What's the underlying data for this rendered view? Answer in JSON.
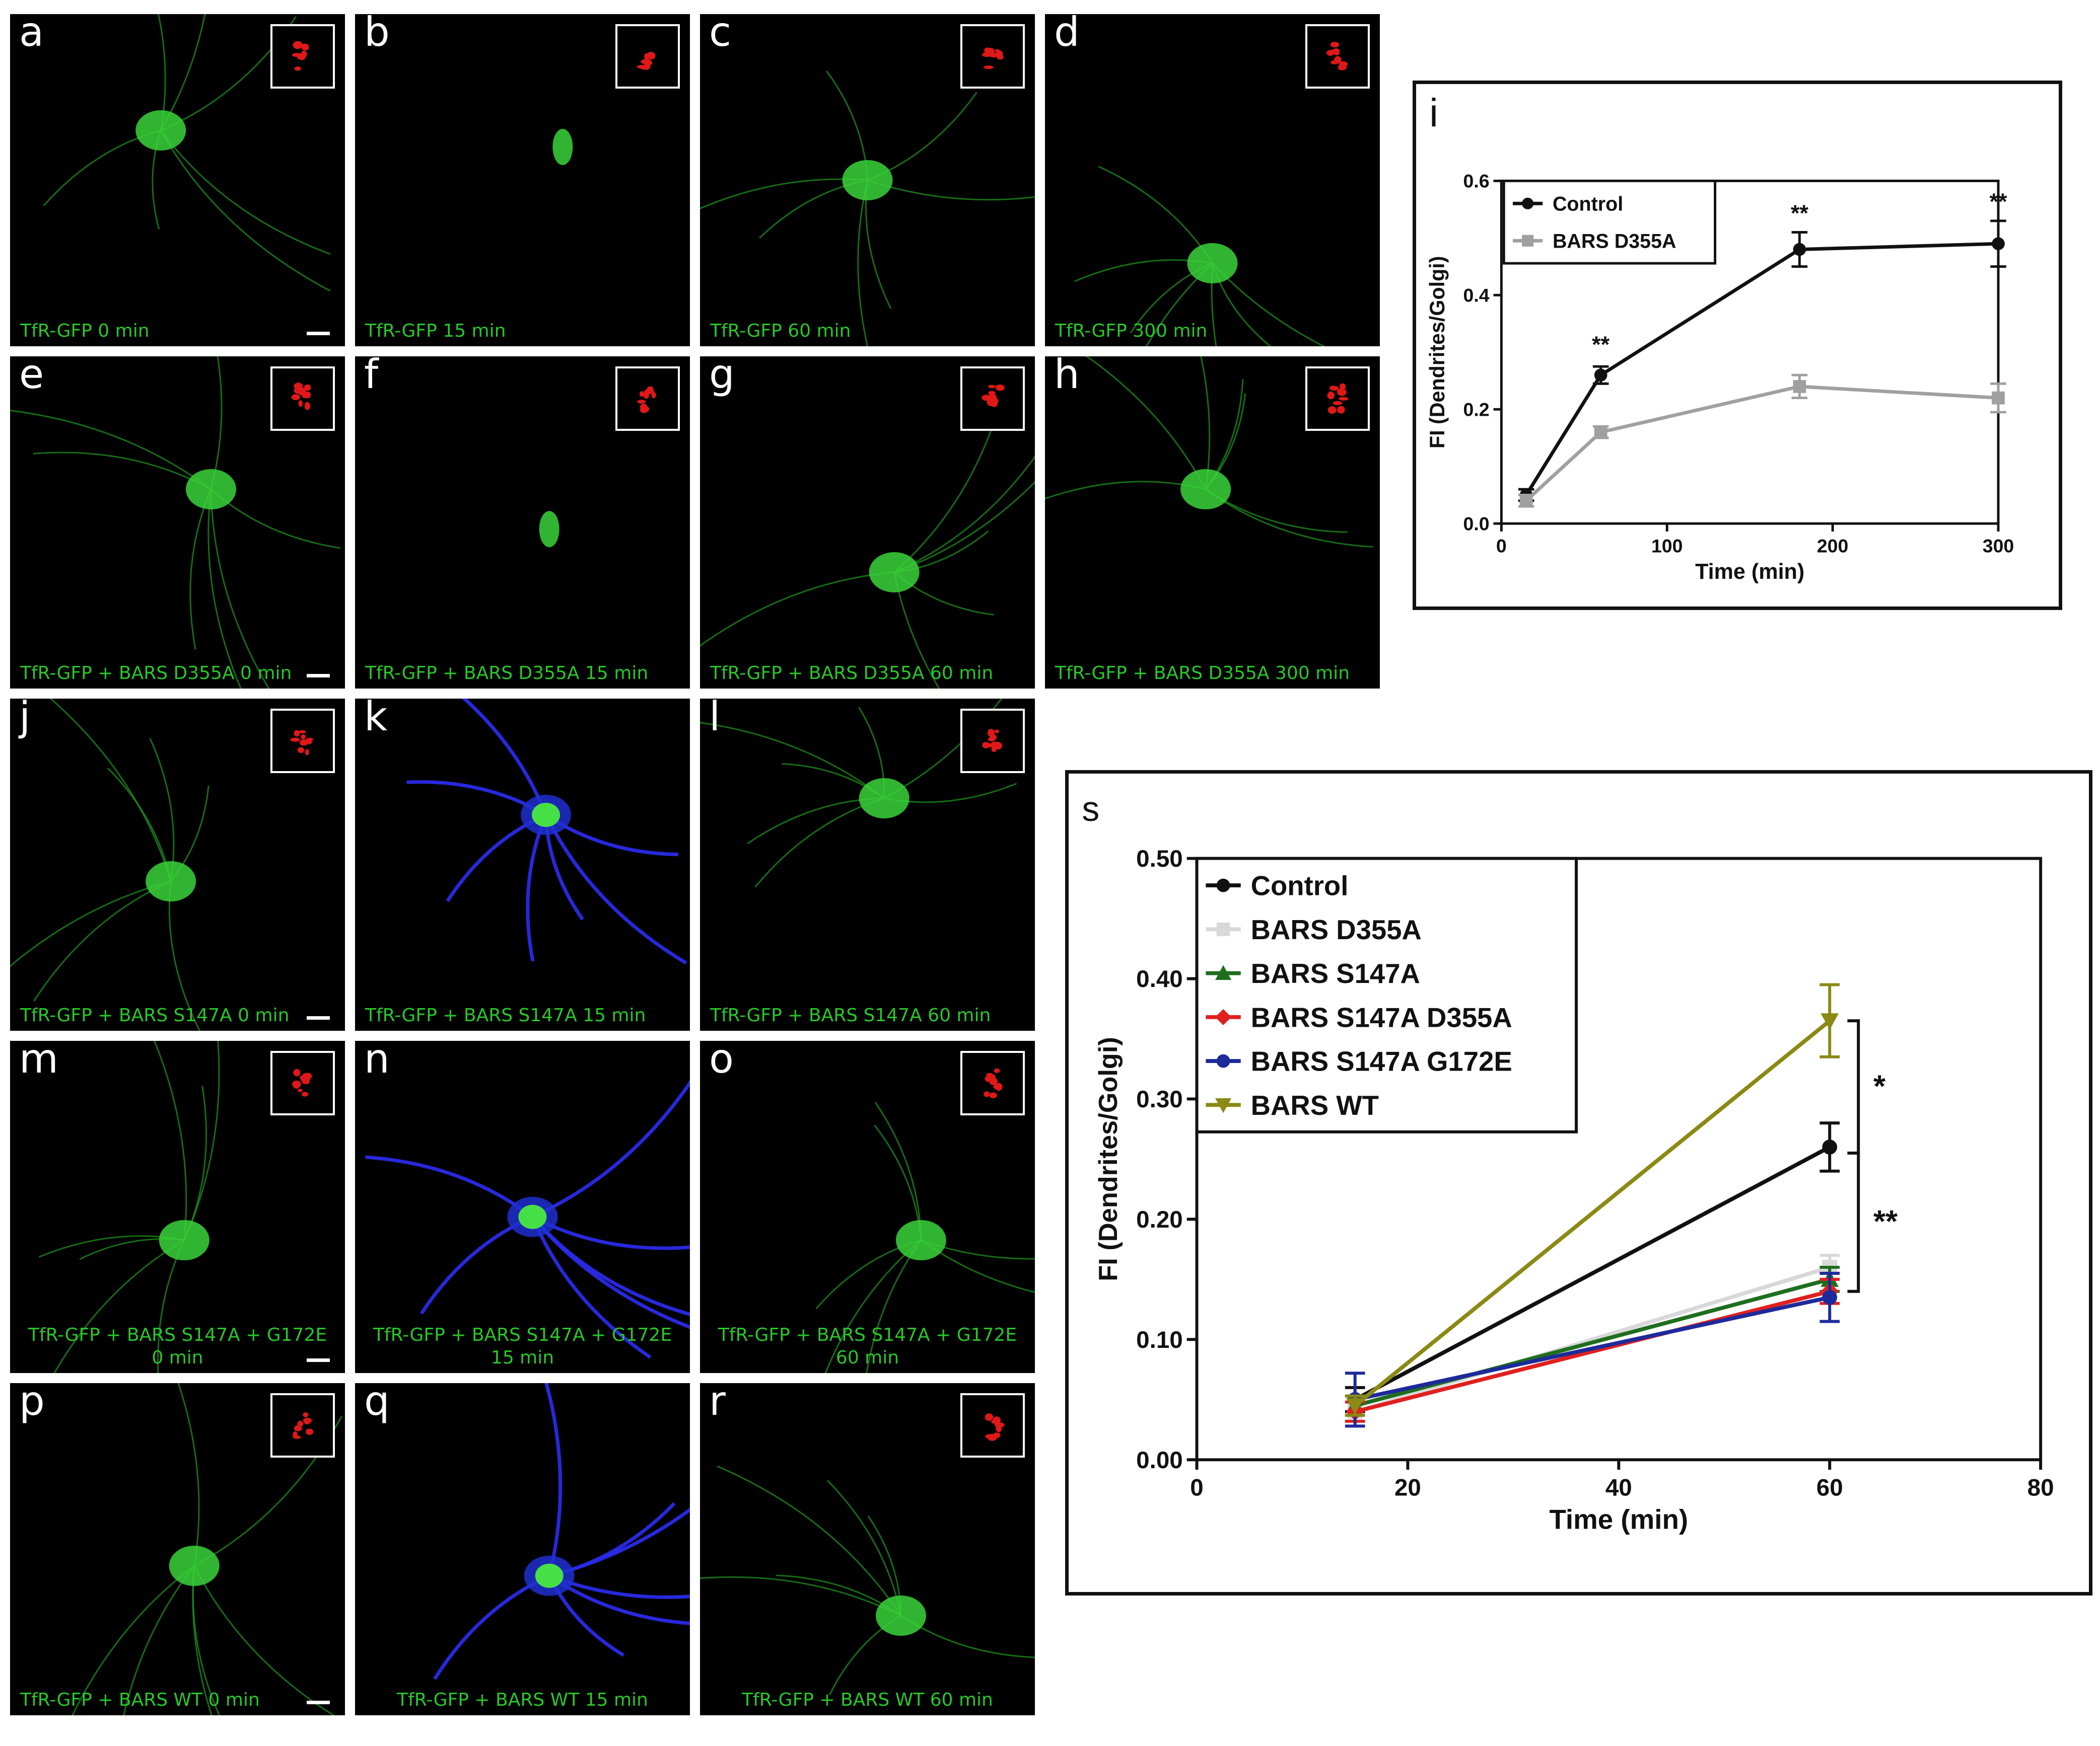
{
  "panels": [
    {
      "id": "a",
      "caption": "TfR-GFP 0 min",
      "inset": true,
      "scalebar": true,
      "color": "green"
    },
    {
      "id": "b",
      "caption": "TfR-GFP 15 min",
      "inset": true,
      "color": "green"
    },
    {
      "id": "c",
      "caption": "TfR-GFP 60 min",
      "inset": true,
      "color": "green"
    },
    {
      "id": "d",
      "caption": "TfR-GFP 300 min",
      "inset": true,
      "color": "green"
    },
    {
      "id": "e",
      "caption": "TfR-GFP + BARS D355A 0 min",
      "inset": true,
      "scalebar": true,
      "color": "green"
    },
    {
      "id": "f",
      "caption": "TfR-GFP + BARS D355A 15 min",
      "inset": true,
      "color": "green"
    },
    {
      "id": "g",
      "caption": "TfR-GFP + BARS D355A 60 min",
      "inset": true,
      "color": "green"
    },
    {
      "id": "h",
      "caption": "TfR-GFP + BARS D355A 300 min",
      "inset": true,
      "color": "green"
    },
    {
      "id": "j",
      "caption": "TfR-GFP + BARS S147A 0 min",
      "inset": true,
      "scalebar": true,
      "color": "green"
    },
    {
      "id": "k",
      "caption": "TfR-GFP + BARS S147A 15 min",
      "inset": false,
      "color": "blue"
    },
    {
      "id": "l",
      "caption": "TfR-GFP + BARS S147A 60 min",
      "inset": true,
      "color": "green"
    },
    {
      "id": "m",
      "caption": "TfR-GFP + BARS S147A + G172E",
      "caption2": "0 min",
      "inset": true,
      "scalebar": true,
      "color": "green"
    },
    {
      "id": "n",
      "caption": "TfR-GFP + BARS S147A + G172E",
      "caption2": "15 min",
      "inset": false,
      "color": "blue"
    },
    {
      "id": "o",
      "caption": "TfR-GFP + BARS S147A + G172E",
      "caption2": "60 min",
      "inset": true,
      "color": "green"
    },
    {
      "id": "p",
      "caption": "TfR-GFP + BARS WT 0 min",
      "inset": true,
      "scalebar": true,
      "color": "green"
    },
    {
      "id": "q",
      "caption": "TfR-GFP + BARS WT 15 min",
      "inset": false,
      "color": "blue",
      "center": true
    },
    {
      "id": "r",
      "caption": "TfR-GFP + BARS WT 60 min",
      "inset": true,
      "color": "green",
      "center": true
    }
  ],
  "chart_data": [
    {
      "panel_label": "i",
      "type": "line",
      "xlabel": "Time (min)",
      "ylabel": "FI (Dendrites/Golgi)",
      "xlim": [
        0,
        300
      ],
      "ylim": [
        0,
        0.6
      ],
      "xticks": [
        "0",
        "100",
        "200",
        "300"
      ],
      "yticks": [
        "0.0",
        "0.2",
        "0.4",
        "0.6"
      ],
      "legend": "top-left",
      "series": [
        {
          "name": "Control",
          "color": "#111111",
          "marker": "circle",
          "x": [
            15,
            60,
            180,
            300
          ],
          "y": [
            0.05,
            0.26,
            0.48,
            0.49
          ],
          "err": [
            0.01,
            0.015,
            0.03,
            0.04
          ]
        },
        {
          "name": "BARS D355A",
          "color": "#a0a0a0",
          "marker": "square",
          "x": [
            15,
            60,
            180,
            300
          ],
          "y": [
            0.04,
            0.16,
            0.24,
            0.22
          ],
          "err": [
            0.01,
            0.01,
            0.02,
            0.025
          ]
        }
      ],
      "annotations": [
        {
          "text": "**",
          "x": 60,
          "y": 0.3
        },
        {
          "text": "**",
          "x": 180,
          "y": 0.53
        },
        {
          "text": "**",
          "x": 300,
          "y": 0.55
        }
      ]
    },
    {
      "panel_label": "s",
      "type": "line",
      "xlabel": "Time (min)",
      "ylabel": "FI (Dendrites/Golgi)",
      "xlim": [
        0,
        80
      ],
      "ylim": [
        0,
        0.5
      ],
      "xticks": [
        "0",
        "20",
        "40",
        "60",
        "80"
      ],
      "yticks": [
        "0.00",
        "0.10",
        "0.20",
        "0.30",
        "0.40",
        "0.50"
      ],
      "legend": "top-left",
      "series": [
        {
          "name": "Control",
          "color": "#111111",
          "marker": "circle",
          "x": [
            15,
            60
          ],
          "y": [
            0.05,
            0.26
          ],
          "err": [
            0.01,
            0.02
          ]
        },
        {
          "name": "BARS D355A",
          "color": "#d8d8d8",
          "marker": "square",
          "x": [
            15,
            60
          ],
          "y": [
            0.04,
            0.16
          ],
          "err": [
            0.008,
            0.01
          ]
        },
        {
          "name": "BARS S147A",
          "color": "#1e6e1e",
          "marker": "triangle-up",
          "x": [
            15,
            60
          ],
          "y": [
            0.045,
            0.15
          ],
          "err": [
            0.008,
            0.01
          ]
        },
        {
          "name": "BARS S147A D355A",
          "color": "#e0201e",
          "marker": "diamond",
          "x": [
            15,
            60
          ],
          "y": [
            0.04,
            0.14
          ],
          "err": [
            0.008,
            0.01
          ]
        },
        {
          "name": "BARS S147A G172E",
          "color": "#1e2a9a",
          "marker": "circle",
          "x": [
            15,
            60
          ],
          "y": [
            0.05,
            0.135
          ],
          "err": [
            0.022,
            0.02
          ]
        },
        {
          "name": "BARS WT",
          "color": "#8a8a14",
          "marker": "triangle-down",
          "x": [
            15,
            60
          ],
          "y": [
            0.045,
            0.365
          ],
          "err": [
            0.008,
            0.03
          ]
        }
      ],
      "annotations": [
        {
          "text": "*",
          "bracket": [
            0.255,
            0.365
          ]
        },
        {
          "text": "**",
          "bracket": [
            0.14,
            0.255
          ]
        }
      ]
    }
  ]
}
